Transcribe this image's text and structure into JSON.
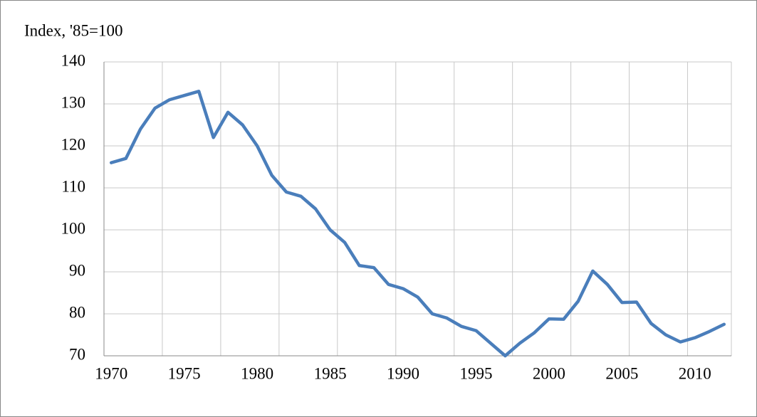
{
  "chart_data": {
    "type": "line",
    "y_label": "Index, '85=100",
    "x": [
      1970,
      1971,
      1972,
      1973,
      1974,
      1975,
      1976,
      1977,
      1978,
      1979,
      1980,
      1981,
      1982,
      1983,
      1984,
      1985,
      1986,
      1987,
      1988,
      1989,
      1990,
      1991,
      1992,
      1993,
      1994,
      1995,
      1996,
      1997,
      1998,
      1999,
      2000,
      2001,
      2002,
      2003,
      2004,
      2005,
      2006,
      2007,
      2008,
      2009,
      2010,
      2011,
      2012
    ],
    "series": [
      {
        "color": "#4a7ebb",
        "values": [
          116,
          117,
          124,
          129,
          131,
          132,
          133,
          122,
          128,
          125,
          120,
          113,
          109,
          108,
          105,
          100,
          97,
          91.5,
          91,
          87,
          86,
          84,
          80,
          79,
          77,
          76,
          73,
          70,
          73,
          75.5,
          78.8,
          78.7,
          83,
          90.2,
          87,
          82.7,
          82.8,
          77.7,
          75,
          73.3,
          74.3,
          75.8,
          77.5
        ]
      }
    ],
    "xlim": [
      1969.5,
      2012.5
    ],
    "xticks": [
      1970,
      1975,
      1980,
      1985,
      1990,
      1995,
      2000,
      2005,
      2010
    ],
    "ylim": [
      70,
      140
    ],
    "yticks": [
      70,
      80,
      90,
      100,
      110,
      120,
      130,
      140
    ],
    "grid": true
  }
}
